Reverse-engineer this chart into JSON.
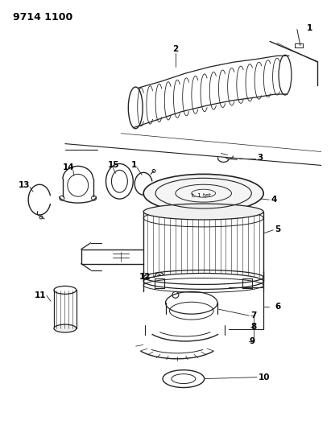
{
  "title": "9714 1100",
  "background_color": "#ffffff",
  "line_color": "#222222",
  "label_color": "#000000",
  "figsize": [
    4.11,
    5.33
  ],
  "dpi": 100
}
